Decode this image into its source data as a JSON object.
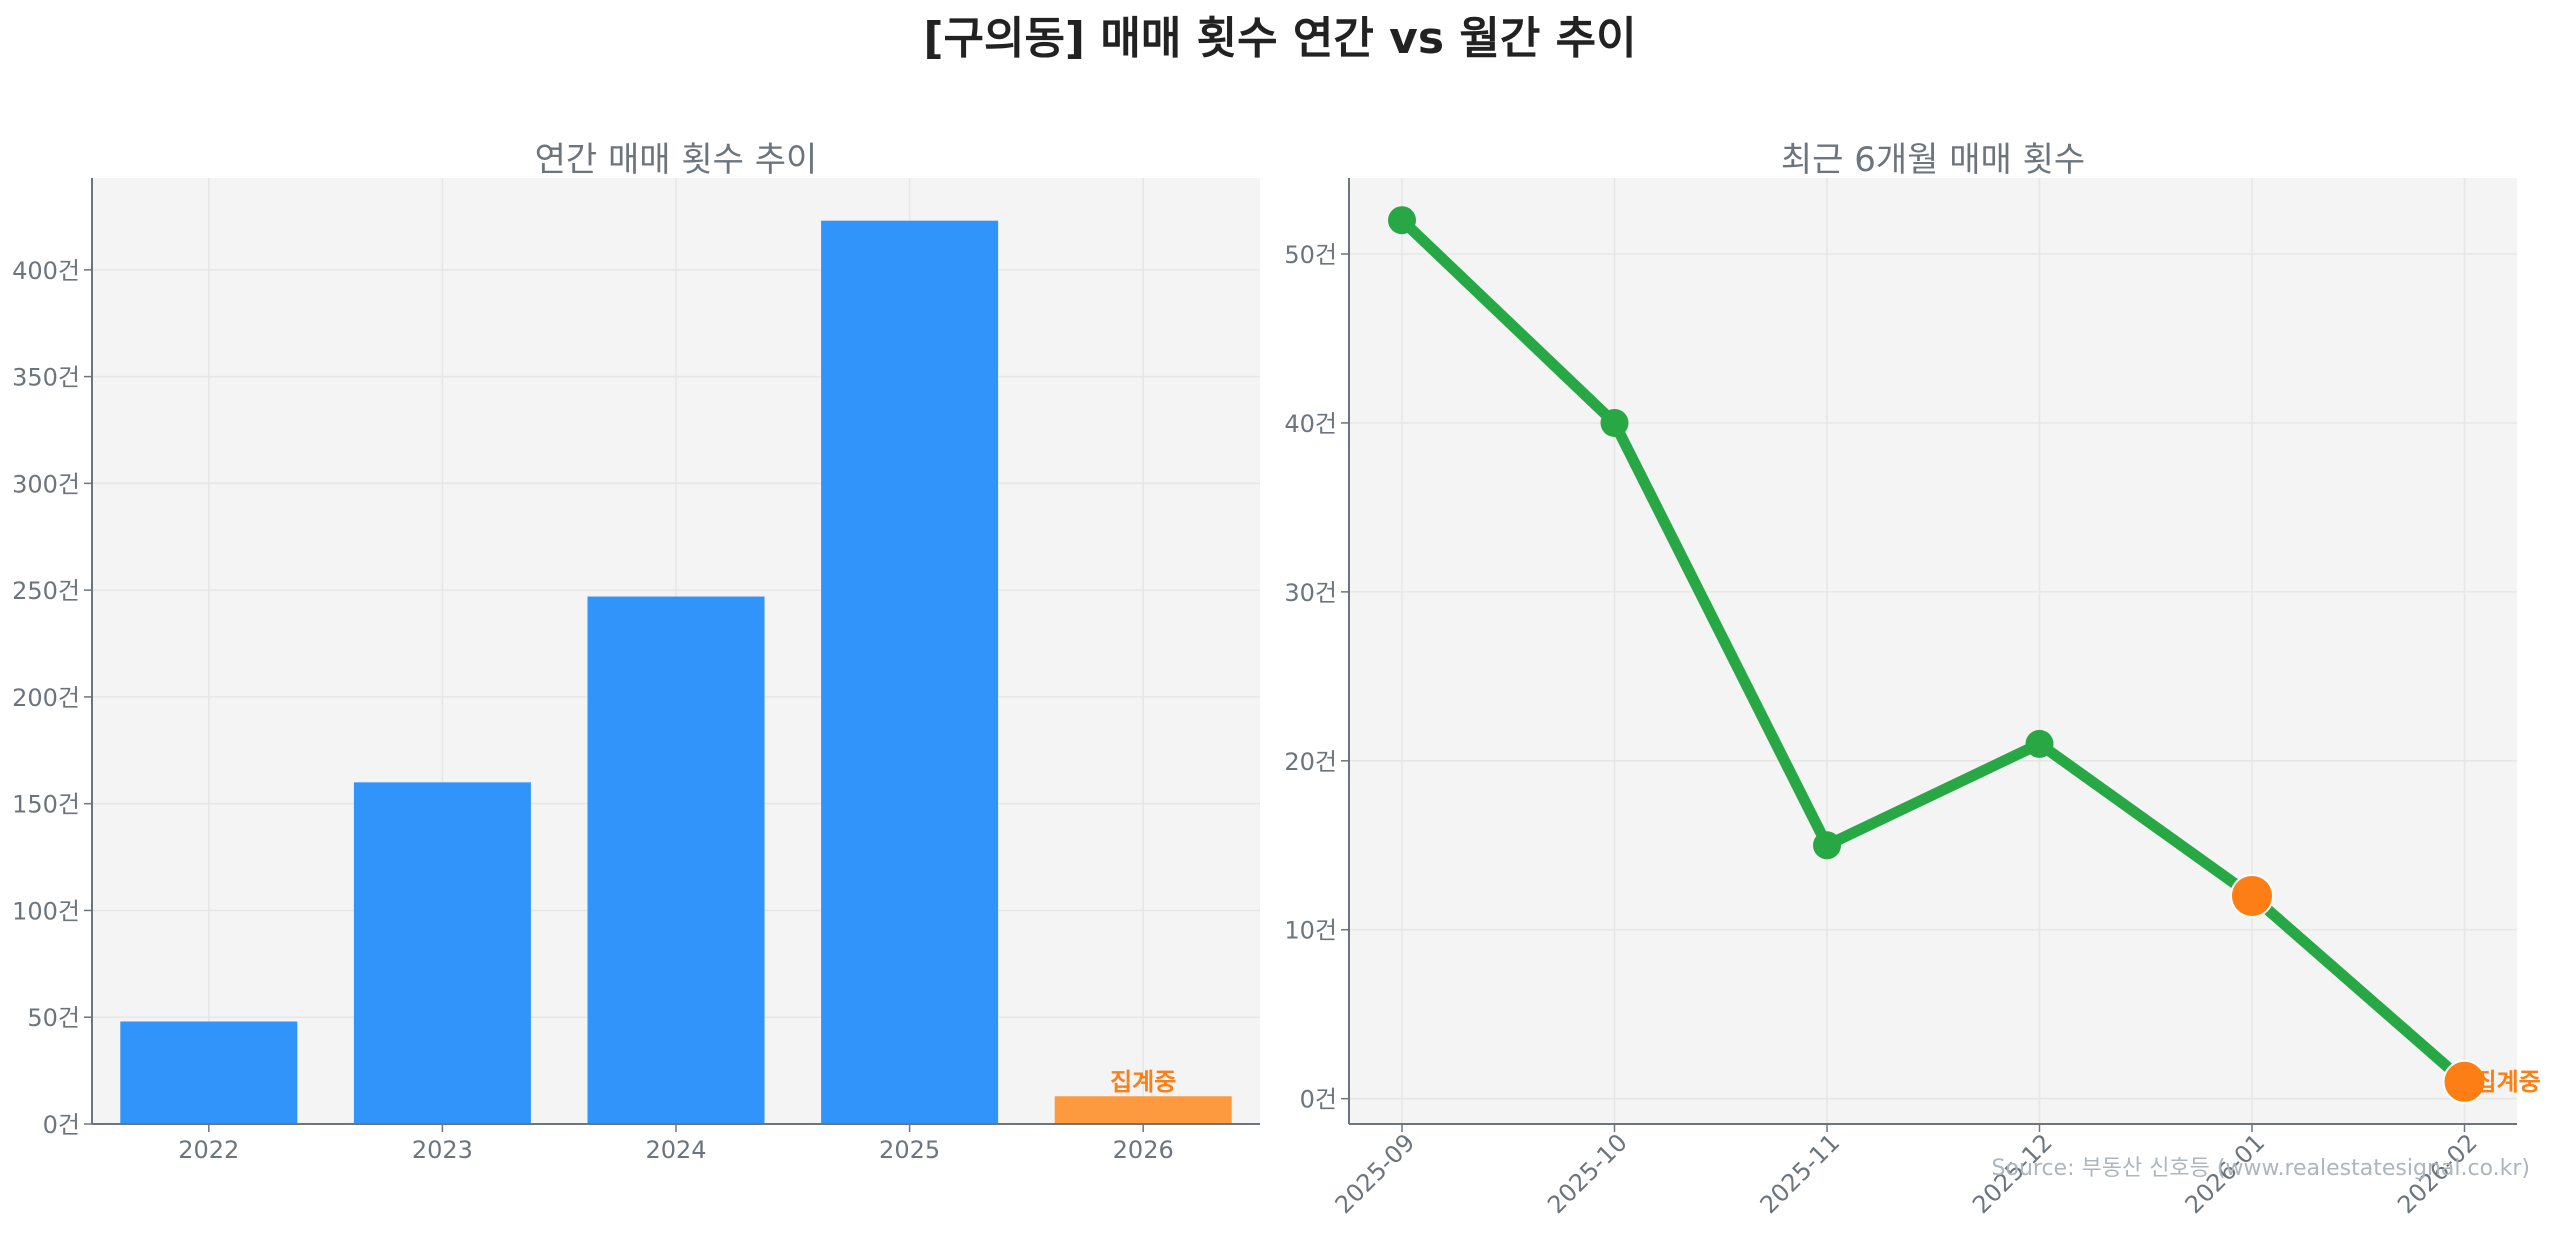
{
  "title": "[구의동] 매매 횟수 연간 vs 월간 추이",
  "source": "Source: 부동산 신호등 (www.realestatesignal.co.kr)",
  "colors": {
    "bar": "#3194fb",
    "bar_partial": "#fd9a40",
    "line": "#28a745",
    "marker_partial": "#fd7e14",
    "plot_bg": "#f4f4f4",
    "tick": "#6c757d"
  },
  "chart_data": [
    {
      "type": "bar",
      "title": "연간 매매 횟수 추이",
      "xlabel": "",
      "ylabel": "",
      "categories": [
        "2022",
        "2023",
        "2024",
        "2025",
        "2026"
      ],
      "values": [
        48,
        160,
        247,
        423,
        13
      ],
      "annotations": [
        {
          "category": "2026",
          "text": "집계중"
        }
      ],
      "yticks": [
        "0건",
        "50건",
        "100건",
        "150건",
        "200건",
        "250건",
        "300건",
        "350건",
        "400건"
      ],
      "ylim": [
        0,
        443
      ],
      "grid": true
    },
    {
      "type": "line",
      "title": "최근 6개월 매매 횟수",
      "xlabel": "",
      "ylabel": "",
      "x": [
        "2025-09",
        "2025-10",
        "2025-11",
        "2025-12",
        "2026-01",
        "2026-02"
      ],
      "values": [
        52,
        40,
        15,
        21,
        12,
        1
      ],
      "partial_points": [
        "2026-01",
        "2026-02"
      ],
      "annotations": [
        {
          "x": "2026-02",
          "text": "집계중"
        }
      ],
      "yticks": [
        "0건",
        "10건",
        "20건",
        "30건",
        "40건",
        "50건"
      ],
      "ylim": [
        -1.5,
        54.5
      ],
      "grid": true
    }
  ]
}
